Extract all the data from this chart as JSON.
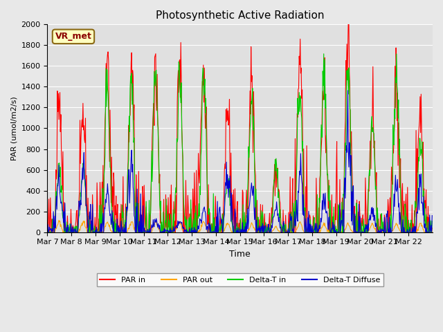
{
  "title": "Photosynthetic Active Radiation",
  "ylabel": "PAR (umol/m2/s)",
  "xlabel": "Time",
  "annotation": "VR_met",
  "ylim": [
    0,
    2000
  ],
  "background_color": "#e8e8e8",
  "plot_bg_color": "#e0e0e0",
  "grid_color": "#ffffff",
  "colors": {
    "PAR_in": "#ff0000",
    "PAR_out": "#ffa500",
    "Delta_T_in": "#00cc00",
    "Delta_T_diffuse": "#0000cc"
  },
  "legend_labels": [
    "PAR in",
    "PAR out",
    "Delta-T in",
    "Delta-T Diffuse"
  ],
  "xtick_labels": [
    "Mar 7",
    "Mar 8",
    "Mar 9",
    "Mar 10",
    "Mar 11",
    "Mar 12",
    "Mar 13",
    "Mar 14",
    "Mar 15",
    "Mar 16",
    "Mar 17",
    "Mar 18",
    "Mar 19",
    "Mar 20",
    "Mar 21",
    "Mar 22"
  ],
  "num_days": 16,
  "pts_per_day": 48,
  "peak_heights_PAR_in": [
    1390,
    1120,
    1690,
    1560,
    1660,
    1670,
    1690,
    1260,
    1520,
    640,
    1710,
    1420,
    1870,
    1140,
    1450,
    1250
  ],
  "peak_heights_PAR_out": [
    100,
    110,
    100,
    100,
    100,
    100,
    100,
    80,
    80,
    50,
    90,
    80,
    80,
    80,
    80,
    80
  ],
  "peak_heights_DT_in": [
    620,
    600,
    1490,
    1490,
    1470,
    1490,
    1490,
    500,
    1280,
    650,
    1420,
    1600,
    1580,
    1050,
    1580,
    920
  ],
  "peak_heights_DT_diff": [
    470,
    610,
    380,
    720,
    120,
    100,
    230,
    580,
    390,
    230,
    610,
    340,
    930,
    220,
    460,
    470
  ],
  "ytick_values": [
    0,
    200,
    400,
    600,
    800,
    1000,
    1200,
    1400,
    1600,
    1800,
    2000
  ]
}
